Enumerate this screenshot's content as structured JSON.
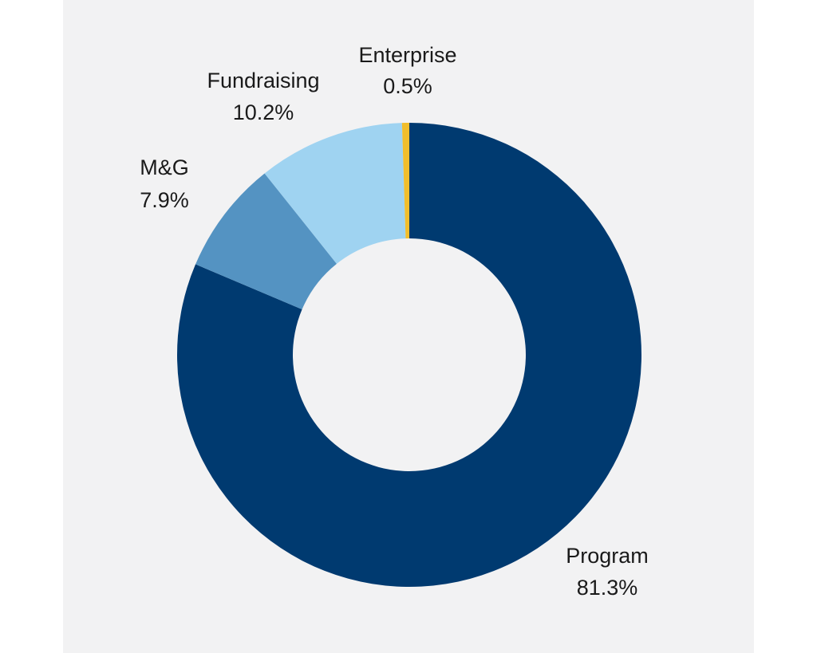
{
  "chart_data": {
    "type": "pie",
    "donut": true,
    "slices": [
      {
        "label": "Program",
        "value": 81.3,
        "value_label": "81.3%",
        "color": "#003a70"
      },
      {
        "label": "M&G",
        "value": 7.9,
        "value_label": "7.9%",
        "color": "#5493c2"
      },
      {
        "label": "Fundraising",
        "value": 10.2,
        "value_label": "10.2%",
        "color": "#9fd3f1"
      },
      {
        "label": "Enterprise",
        "value": 0.5,
        "value_label": "0.5%",
        "color": "#f1be2c"
      }
    ]
  },
  "colors": {
    "background": "#f2f2f3",
    "label_text": "#1a1a1a"
  }
}
